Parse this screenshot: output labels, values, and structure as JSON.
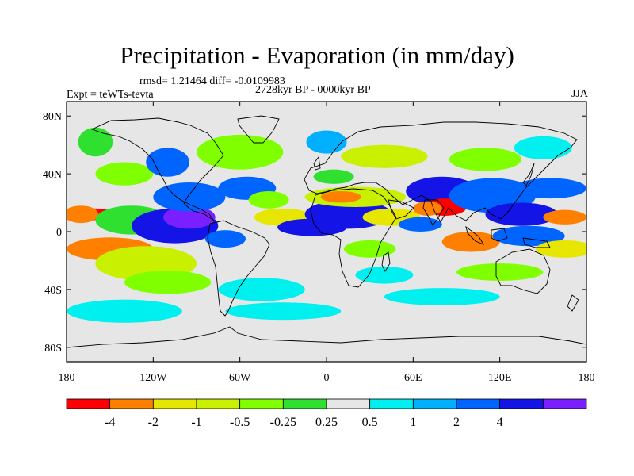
{
  "title": "Precipitation - Evaporation (in mm/day)",
  "stats": "rmsd= 1.21464 diff= -0.0109983",
  "experiment": "Expt = teWTs-tevta",
  "period": "2728kyr BP - 0000kyr BP",
  "season": "JJA",
  "map": {
    "projection": "cylindrical equidistant",
    "lon_range": [
      -180,
      180
    ],
    "lat_range": [
      -90,
      90
    ],
    "x_ticks": [
      {
        "lon": -180,
        "label": "180"
      },
      {
        "lon": -120,
        "label": "120W"
      },
      {
        "lon": -60,
        "label": "60W"
      },
      {
        "lon": 0,
        "label": "0"
      },
      {
        "lon": 60,
        "label": "60E"
      },
      {
        "lon": 120,
        "label": "120E"
      },
      {
        "lon": 180,
        "label": "180"
      }
    ],
    "y_ticks": [
      {
        "lat": 80,
        "label": "80N"
      },
      {
        "lat": 40,
        "label": "40N"
      },
      {
        "lat": 0,
        "label": "0"
      },
      {
        "lat": -40,
        "label": "40S"
      },
      {
        "lat": -80,
        "label": "80S"
      }
    ],
    "background_color": "#e6e6e6"
  },
  "colorbar": {
    "colors": [
      "#ff0000",
      "#ff8000",
      "#e6e600",
      "#c8f000",
      "#80ff00",
      "#30e030",
      "#e6e6e6",
      "#00f0f0",
      "#00b0ff",
      "#0064ff",
      "#1414e6",
      "#7a1fff"
    ],
    "labels": [
      "-4",
      "-2",
      "-1",
      "-0.5",
      "-0.25",
      "0.25",
      "0.5",
      "1",
      "2",
      "4"
    ]
  },
  "field_blobs": [
    {
      "lon": -160,
      "lat": 12,
      "rx": 22,
      "ry": 4,
      "level": 0
    },
    {
      "lon": -170,
      "lat": 12,
      "rx": 12,
      "ry": 6,
      "level": 1
    },
    {
      "lon": -135,
      "lat": 8,
      "rx": 25,
      "ry": 10,
      "level": 5
    },
    {
      "lon": -105,
      "lat": 4,
      "rx": 30,
      "ry": 12,
      "level": 10
    },
    {
      "lon": -95,
      "lat": 10,
      "rx": 18,
      "ry": 8,
      "level": 11
    },
    {
      "lon": -95,
      "lat": 24,
      "rx": 25,
      "ry": 10,
      "level": 9
    },
    {
      "lon": -55,
      "lat": 30,
      "rx": 20,
      "ry": 8,
      "level": 9
    },
    {
      "lon": -70,
      "lat": -5,
      "rx": 14,
      "ry": 6,
      "level": 9
    },
    {
      "lon": -40,
      "lat": 22,
      "rx": 14,
      "ry": 6,
      "level": 4
    },
    {
      "lon": -150,
      "lat": -12,
      "rx": 30,
      "ry": 8,
      "level": 1
    },
    {
      "lon": -125,
      "lat": -22,
      "rx": 35,
      "ry": 12,
      "level": 3
    },
    {
      "lon": -110,
      "lat": -35,
      "rx": 30,
      "ry": 8,
      "level": 4
    },
    {
      "lon": -140,
      "lat": 40,
      "rx": 20,
      "ry": 8,
      "level": 4
    },
    {
      "lon": -110,
      "lat": 48,
      "rx": 15,
      "ry": 10,
      "level": 9
    },
    {
      "lon": -60,
      "lat": 55,
      "rx": 30,
      "ry": 12,
      "level": 4
    },
    {
      "lon": -160,
      "lat": 62,
      "rx": 12,
      "ry": 10,
      "level": 5
    },
    {
      "lon": -45,
      "lat": -40,
      "rx": 30,
      "ry": 8,
      "level": 7
    },
    {
      "lon": -30,
      "lat": 10,
      "rx": 20,
      "ry": 6,
      "level": 2
    },
    {
      "lon": -10,
      "lat": 3,
      "rx": 24,
      "ry": 6,
      "level": 10
    },
    {
      "lon": 15,
      "lat": 12,
      "rx": 30,
      "ry": 10,
      "level": 10
    },
    {
      "lon": 20,
      "lat": 24,
      "rx": 35,
      "ry": 7,
      "level": 3
    },
    {
      "lon": 10,
      "lat": 24,
      "rx": 14,
      "ry": 4,
      "level": 1
    },
    {
      "lon": 5,
      "lat": 38,
      "rx": 14,
      "ry": 5,
      "level": 5
    },
    {
      "lon": 0,
      "lat": 62,
      "rx": 14,
      "ry": 8,
      "level": 8
    },
    {
      "lon": 40,
      "lat": 52,
      "rx": 30,
      "ry": 8,
      "level": 3
    },
    {
      "lon": 45,
      "lat": 10,
      "rx": 20,
      "ry": 6,
      "level": 2
    },
    {
      "lon": 30,
      "lat": -12,
      "rx": 18,
      "ry": 6,
      "level": 4
    },
    {
      "lon": 40,
      "lat": -30,
      "rx": 20,
      "ry": 6,
      "level": 7
    },
    {
      "lon": 80,
      "lat": 28,
      "rx": 25,
      "ry": 10,
      "level": 10
    },
    {
      "lon": 82,
      "lat": 17,
      "rx": 15,
      "ry": 6,
      "level": 0
    },
    {
      "lon": 70,
      "lat": 16,
      "rx": 10,
      "ry": 5,
      "level": 1
    },
    {
      "lon": 65,
      "lat": 5,
      "rx": 15,
      "ry": 5,
      "level": 9
    },
    {
      "lon": 115,
      "lat": 25,
      "rx": 30,
      "ry": 12,
      "level": 9
    },
    {
      "lon": 135,
      "lat": 12,
      "rx": 25,
      "ry": 8,
      "level": 10
    },
    {
      "lon": 155,
      "lat": 30,
      "rx": 25,
      "ry": 7,
      "level": 9
    },
    {
      "lon": 165,
      "lat": 10,
      "rx": 15,
      "ry": 5,
      "level": 1
    },
    {
      "lon": 100,
      "lat": -7,
      "rx": 20,
      "ry": 7,
      "level": 1
    },
    {
      "lon": 140,
      "lat": -3,
      "rx": 25,
      "ry": 7,
      "level": 9
    },
    {
      "lon": 165,
      "lat": -12,
      "rx": 20,
      "ry": 6,
      "level": 2
    },
    {
      "lon": 110,
      "lat": 50,
      "rx": 25,
      "ry": 8,
      "level": 4
    },
    {
      "lon": 150,
      "lat": 58,
      "rx": 20,
      "ry": 8,
      "level": 7
    },
    {
      "lon": 120,
      "lat": -28,
      "rx": 30,
      "ry": 6,
      "level": 4
    },
    {
      "lon": 80,
      "lat": -45,
      "rx": 40,
      "ry": 6,
      "level": 7
    },
    {
      "lon": -140,
      "lat": -55,
      "rx": 40,
      "ry": 8,
      "level": 7
    },
    {
      "lon": -30,
      "lat": -55,
      "rx": 40,
      "ry": 6,
      "level": 7
    }
  ]
}
